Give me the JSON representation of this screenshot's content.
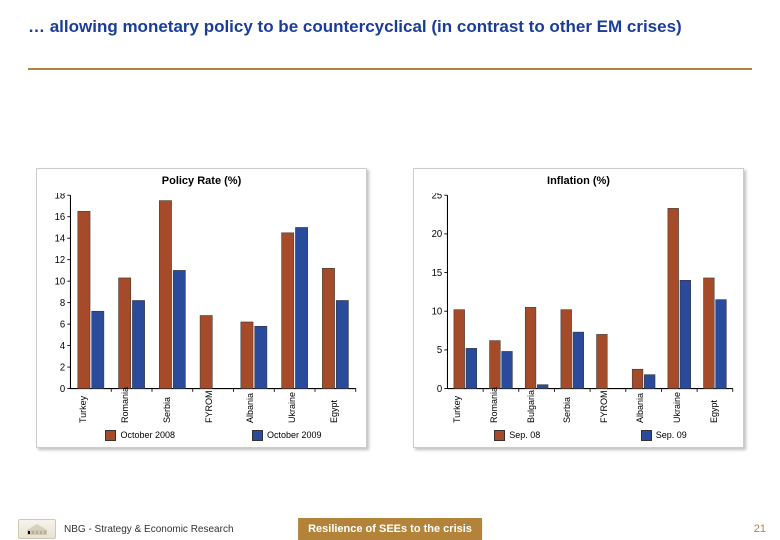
{
  "slide": {
    "title": "… allowing monetary policy to be countercyclical (in contrast to other EM crises)",
    "title_color": "#1a3d99",
    "underline_color": "#b3833a"
  },
  "colors": {
    "series1": "#a64b2a",
    "series2": "#2a4b9b",
    "axis": "#000000",
    "grid": "#e6e6e6",
    "card_shadow": "#c9c9c9"
  },
  "chart_left": {
    "title": "Policy Rate (%)",
    "type": "bar",
    "ylim": [
      0,
      18
    ],
    "ytick_step": 2,
    "categories": [
      "Turkey",
      "Romania",
      "Serbia",
      "FYROM",
      "Albania",
      "Ukraine",
      "Egypt"
    ],
    "series": [
      {
        "name": "October 2008",
        "color": "#a64b2a",
        "values": [
          16.5,
          10.3,
          17.5,
          6.8,
          6.2,
          14.5,
          11.2
        ]
      },
      {
        "name": "October 2009",
        "color": "#2a4b9b",
        "values": [
          7.2,
          8.2,
          11.0,
          0,
          5.8,
          15.0,
          8.2
        ]
      }
    ],
    "bar_group_width": 0.64,
    "bar_gap": 0.04,
    "label_fontsize": 9,
    "tick_fontsize": 9
  },
  "chart_right": {
    "title": "Inflation (%)",
    "type": "bar",
    "ylim": [
      0,
      25
    ],
    "ytick_step": 5,
    "categories": [
      "Turkey",
      "Romania",
      "Bulgaria",
      "Serbia",
      "FYROM",
      "Albania",
      "Ukraine",
      "Egypt"
    ],
    "series": [
      {
        "name": "Sep. 08",
        "color": "#a64b2a",
        "values": [
          10.2,
          6.2,
          10.5,
          10.2,
          7.0,
          2.5,
          23.3,
          14.3
        ]
      },
      {
        "name": "Sep. 09",
        "color": "#2a4b9b",
        "values": [
          5.2,
          4.8,
          0.5,
          7.3,
          0,
          1.8,
          14.0,
          11.5
        ]
      }
    ],
    "bar_group_width": 0.64,
    "bar_gap": 0.04,
    "label_fontsize": 9,
    "tick_fontsize": 9
  },
  "footer": {
    "source": "NBG - Strategy & Economic Research",
    "source_color": "#333333",
    "center": "Resilience of SEEs to the crisis",
    "center_bg": "#b3833a",
    "center_color": "#ffffff",
    "page": "21",
    "page_color": "#b3833a"
  }
}
